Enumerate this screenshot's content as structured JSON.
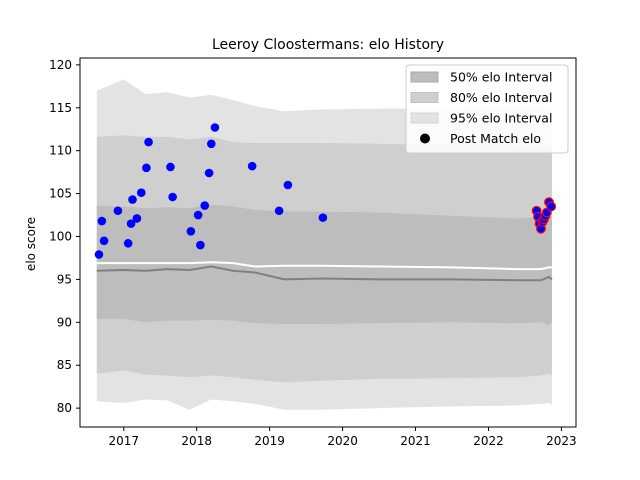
{
  "chart_data": {
    "type": "scatter",
    "title": "Leeroy Cloostermans: elo History",
    "xlabel": "",
    "ylabel": "elo score",
    "xlim": [
      2016.4,
      2023.2
    ],
    "ylim": [
      77.8,
      120.8
    ],
    "x_ticks": [
      2017,
      2018,
      2019,
      2020,
      2021,
      2022,
      2023
    ],
    "x_tick_labels": [
      "2017",
      "2018",
      "2019",
      "2020",
      "2021",
      "2022",
      "2023"
    ],
    "y_ticks": [
      80,
      85,
      90,
      95,
      100,
      105,
      110,
      115,
      120
    ],
    "y_tick_labels": [
      "80",
      "85",
      "90",
      "95",
      "100",
      "105",
      "110",
      "115",
      "120"
    ],
    "legend": {
      "position": "top-right",
      "entries": [
        "50% elo Interval",
        "80% elo Interval",
        "95% elo Interval",
        "Post Match elo"
      ]
    },
    "colors": {
      "band95": "#e3e3e3",
      "band80": "#cfcfcf",
      "band50": "#bdbdbd",
      "median_line": "#808080",
      "mean_line": "#ffffff",
      "points": "#0000ff",
      "recent_point_edge": "#ff0000"
    },
    "bands": {
      "x": [
        2016.63,
        2017.0,
        2017.3,
        2017.6,
        2017.9,
        2018.2,
        2018.5,
        2018.8,
        2019.2,
        2019.7,
        2020.5,
        2021.5,
        2022.4,
        2022.72,
        2022.83,
        2022.87
      ],
      "p95_low": [
        80.8,
        80.6,
        81.0,
        80.9,
        79.8,
        81.0,
        80.8,
        80.5,
        79.8,
        79.8,
        80.0,
        80.2,
        80.3,
        80.5,
        80.6,
        80.4
      ],
      "p95_high": [
        117.0,
        118.3,
        116.6,
        116.8,
        116.2,
        116.5,
        115.9,
        115.2,
        114.6,
        114.8,
        114.9,
        114.9,
        115.0,
        115.0,
        115.0,
        115.0
      ],
      "p80_low": [
        84.0,
        84.4,
        83.9,
        83.8,
        83.6,
        83.8,
        83.6,
        83.3,
        83.0,
        83.2,
        83.4,
        83.5,
        83.6,
        83.8,
        84.0,
        83.8
      ],
      "p80_high": [
        111.6,
        111.8,
        111.6,
        111.6,
        111.3,
        111.6,
        111.0,
        110.9,
        110.9,
        110.9,
        110.8,
        110.7,
        110.6,
        110.6,
        110.6,
        110.6
      ],
      "p50_low": [
        90.4,
        90.4,
        90.0,
        90.2,
        90.2,
        90.3,
        90.2,
        89.9,
        89.8,
        89.8,
        89.9,
        90.0,
        89.9,
        90.0,
        89.7,
        90.0
      ],
      "p50_high": [
        103.6,
        103.5,
        103.3,
        103.4,
        103.3,
        103.7,
        103.5,
        103.1,
        102.9,
        102.9,
        102.8,
        102.4,
        102.1,
        102.3,
        102.4,
        102.4
      ],
      "median": [
        96.0,
        96.1,
        96.0,
        96.2,
        96.1,
        96.5,
        96.0,
        95.8,
        95.0,
        95.1,
        95.0,
        95.0,
        94.9,
        94.9,
        95.3,
        95.0
      ],
      "mean": [
        96.9,
        96.9,
        96.9,
        96.9,
        96.9,
        97.0,
        96.9,
        96.5,
        96.6,
        96.6,
        96.5,
        96.4,
        96.2,
        96.2,
        96.4,
        96.4
      ]
    },
    "points": [
      {
        "x": 2016.66,
        "y": 97.9
      },
      {
        "x": 2016.7,
        "y": 101.8
      },
      {
        "x": 2016.73,
        "y": 99.5
      },
      {
        "x": 2016.92,
        "y": 103.0
      },
      {
        "x": 2017.06,
        "y": 99.2
      },
      {
        "x": 2017.1,
        "y": 101.5
      },
      {
        "x": 2017.12,
        "y": 104.3
      },
      {
        "x": 2017.18,
        "y": 102.1
      },
      {
        "x": 2017.24,
        "y": 105.1
      },
      {
        "x": 2017.31,
        "y": 108.0
      },
      {
        "x": 2017.34,
        "y": 111.0
      },
      {
        "x": 2017.64,
        "y": 108.1
      },
      {
        "x": 2017.67,
        "y": 104.6
      },
      {
        "x": 2017.92,
        "y": 100.6
      },
      {
        "x": 2018.02,
        "y": 102.5
      },
      {
        "x": 2018.05,
        "y": 99.0
      },
      {
        "x": 2018.11,
        "y": 103.6
      },
      {
        "x": 2018.17,
        "y": 107.4
      },
      {
        "x": 2018.2,
        "y": 110.8
      },
      {
        "x": 2018.25,
        "y": 112.7
      },
      {
        "x": 2018.76,
        "y": 108.2
      },
      {
        "x": 2019.13,
        "y": 103.0
      },
      {
        "x": 2019.25,
        "y": 106.0
      },
      {
        "x": 2019.73,
        "y": 102.2
      }
    ],
    "recent_points": [
      {
        "x": 2022.66,
        "y": 103.0
      },
      {
        "x": 2022.68,
        "y": 102.3
      },
      {
        "x": 2022.7,
        "y": 101.5
      },
      {
        "x": 2022.72,
        "y": 100.9
      },
      {
        "x": 2022.74,
        "y": 101.7
      },
      {
        "x": 2022.76,
        "y": 102.0
      },
      {
        "x": 2022.78,
        "y": 102.4
      },
      {
        "x": 2022.8,
        "y": 102.8
      },
      {
        "x": 2022.83,
        "y": 104.0
      },
      {
        "x": 2022.86,
        "y": 103.5
      }
    ]
  }
}
